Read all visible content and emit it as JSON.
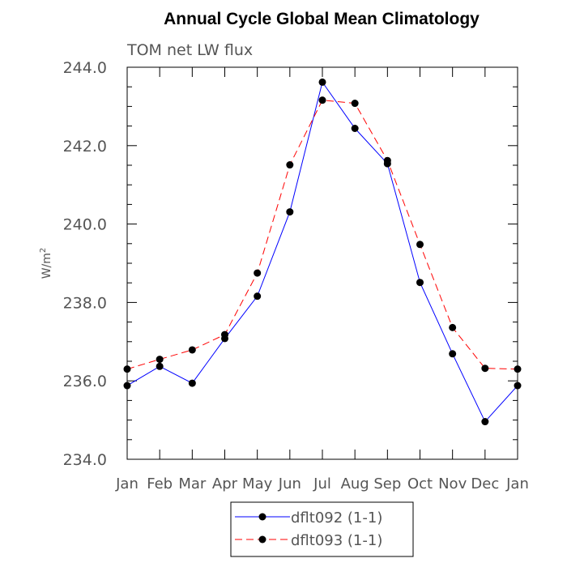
{
  "chart_data": {
    "type": "line",
    "title": "Annual Cycle Global Mean Climatology",
    "subtitle": "TOM net LW flux",
    "ylabel_base": "W/m",
    "ylabel_sup": "2",
    "categories": [
      "Jan",
      "Feb",
      "Mar",
      "Apr",
      "May",
      "Jun",
      "Jul",
      "Aug",
      "Sep",
      "Oct",
      "Nov",
      "Dec",
      "Jan"
    ],
    "ylim": [
      234.0,
      244.0
    ],
    "yticks": [
      "234.0",
      "236.0",
      "238.0",
      "240.0",
      "242.0",
      "244.0"
    ],
    "ytick_values": [
      234,
      236,
      238,
      240,
      242,
      244
    ],
    "series": [
      {
        "name": "dflt092 (1-1)",
        "color": "#0000ff",
        "dash": "solid",
        "values": [
          235.88,
          236.37,
          235.94,
          237.08,
          238.16,
          240.31,
          243.62,
          242.44,
          241.54,
          238.51,
          236.69,
          234.96,
          235.88
        ]
      },
      {
        "name": "dflt093 (1-1)",
        "color": "#ff0000",
        "dash": "dashed",
        "values": [
          236.3,
          236.55,
          236.79,
          237.18,
          238.75,
          241.51,
          243.16,
          243.08,
          241.62,
          239.48,
          237.36,
          236.32,
          236.3
        ]
      }
    ],
    "legend_position": "bottom-center",
    "marker": "filled-circle",
    "grid": false
  }
}
